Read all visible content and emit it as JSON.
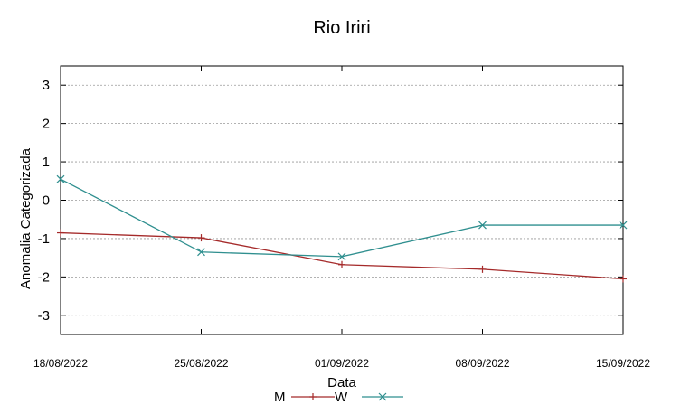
{
  "chart_data": {
    "type": "line",
    "title": "Rio Iriri",
    "xlabel": "Data",
    "ylabel": "Anomalia Categorizada",
    "categories": [
      "18/08/2022",
      "25/08/2022",
      "01/09/2022",
      "08/09/2022",
      "15/09/2022"
    ],
    "yticks": [
      "3",
      "2",
      "1",
      "0",
      "-1",
      "-2",
      "-3"
    ],
    "ylim": [
      -3.5,
      3.5
    ],
    "grid": "horizontal dashed",
    "legend_position": "bottom-center",
    "series": [
      {
        "name": "M",
        "color": "#a52a2a",
        "marker": "plus",
        "values": [
          -0.85,
          -0.98,
          -1.68,
          -1.8,
          -2.05
        ]
      },
      {
        "name": "W",
        "color": "#2f8f8f",
        "marker": "x",
        "values": [
          0.55,
          -1.35,
          -1.47,
          -0.65,
          -0.65
        ]
      }
    ]
  }
}
